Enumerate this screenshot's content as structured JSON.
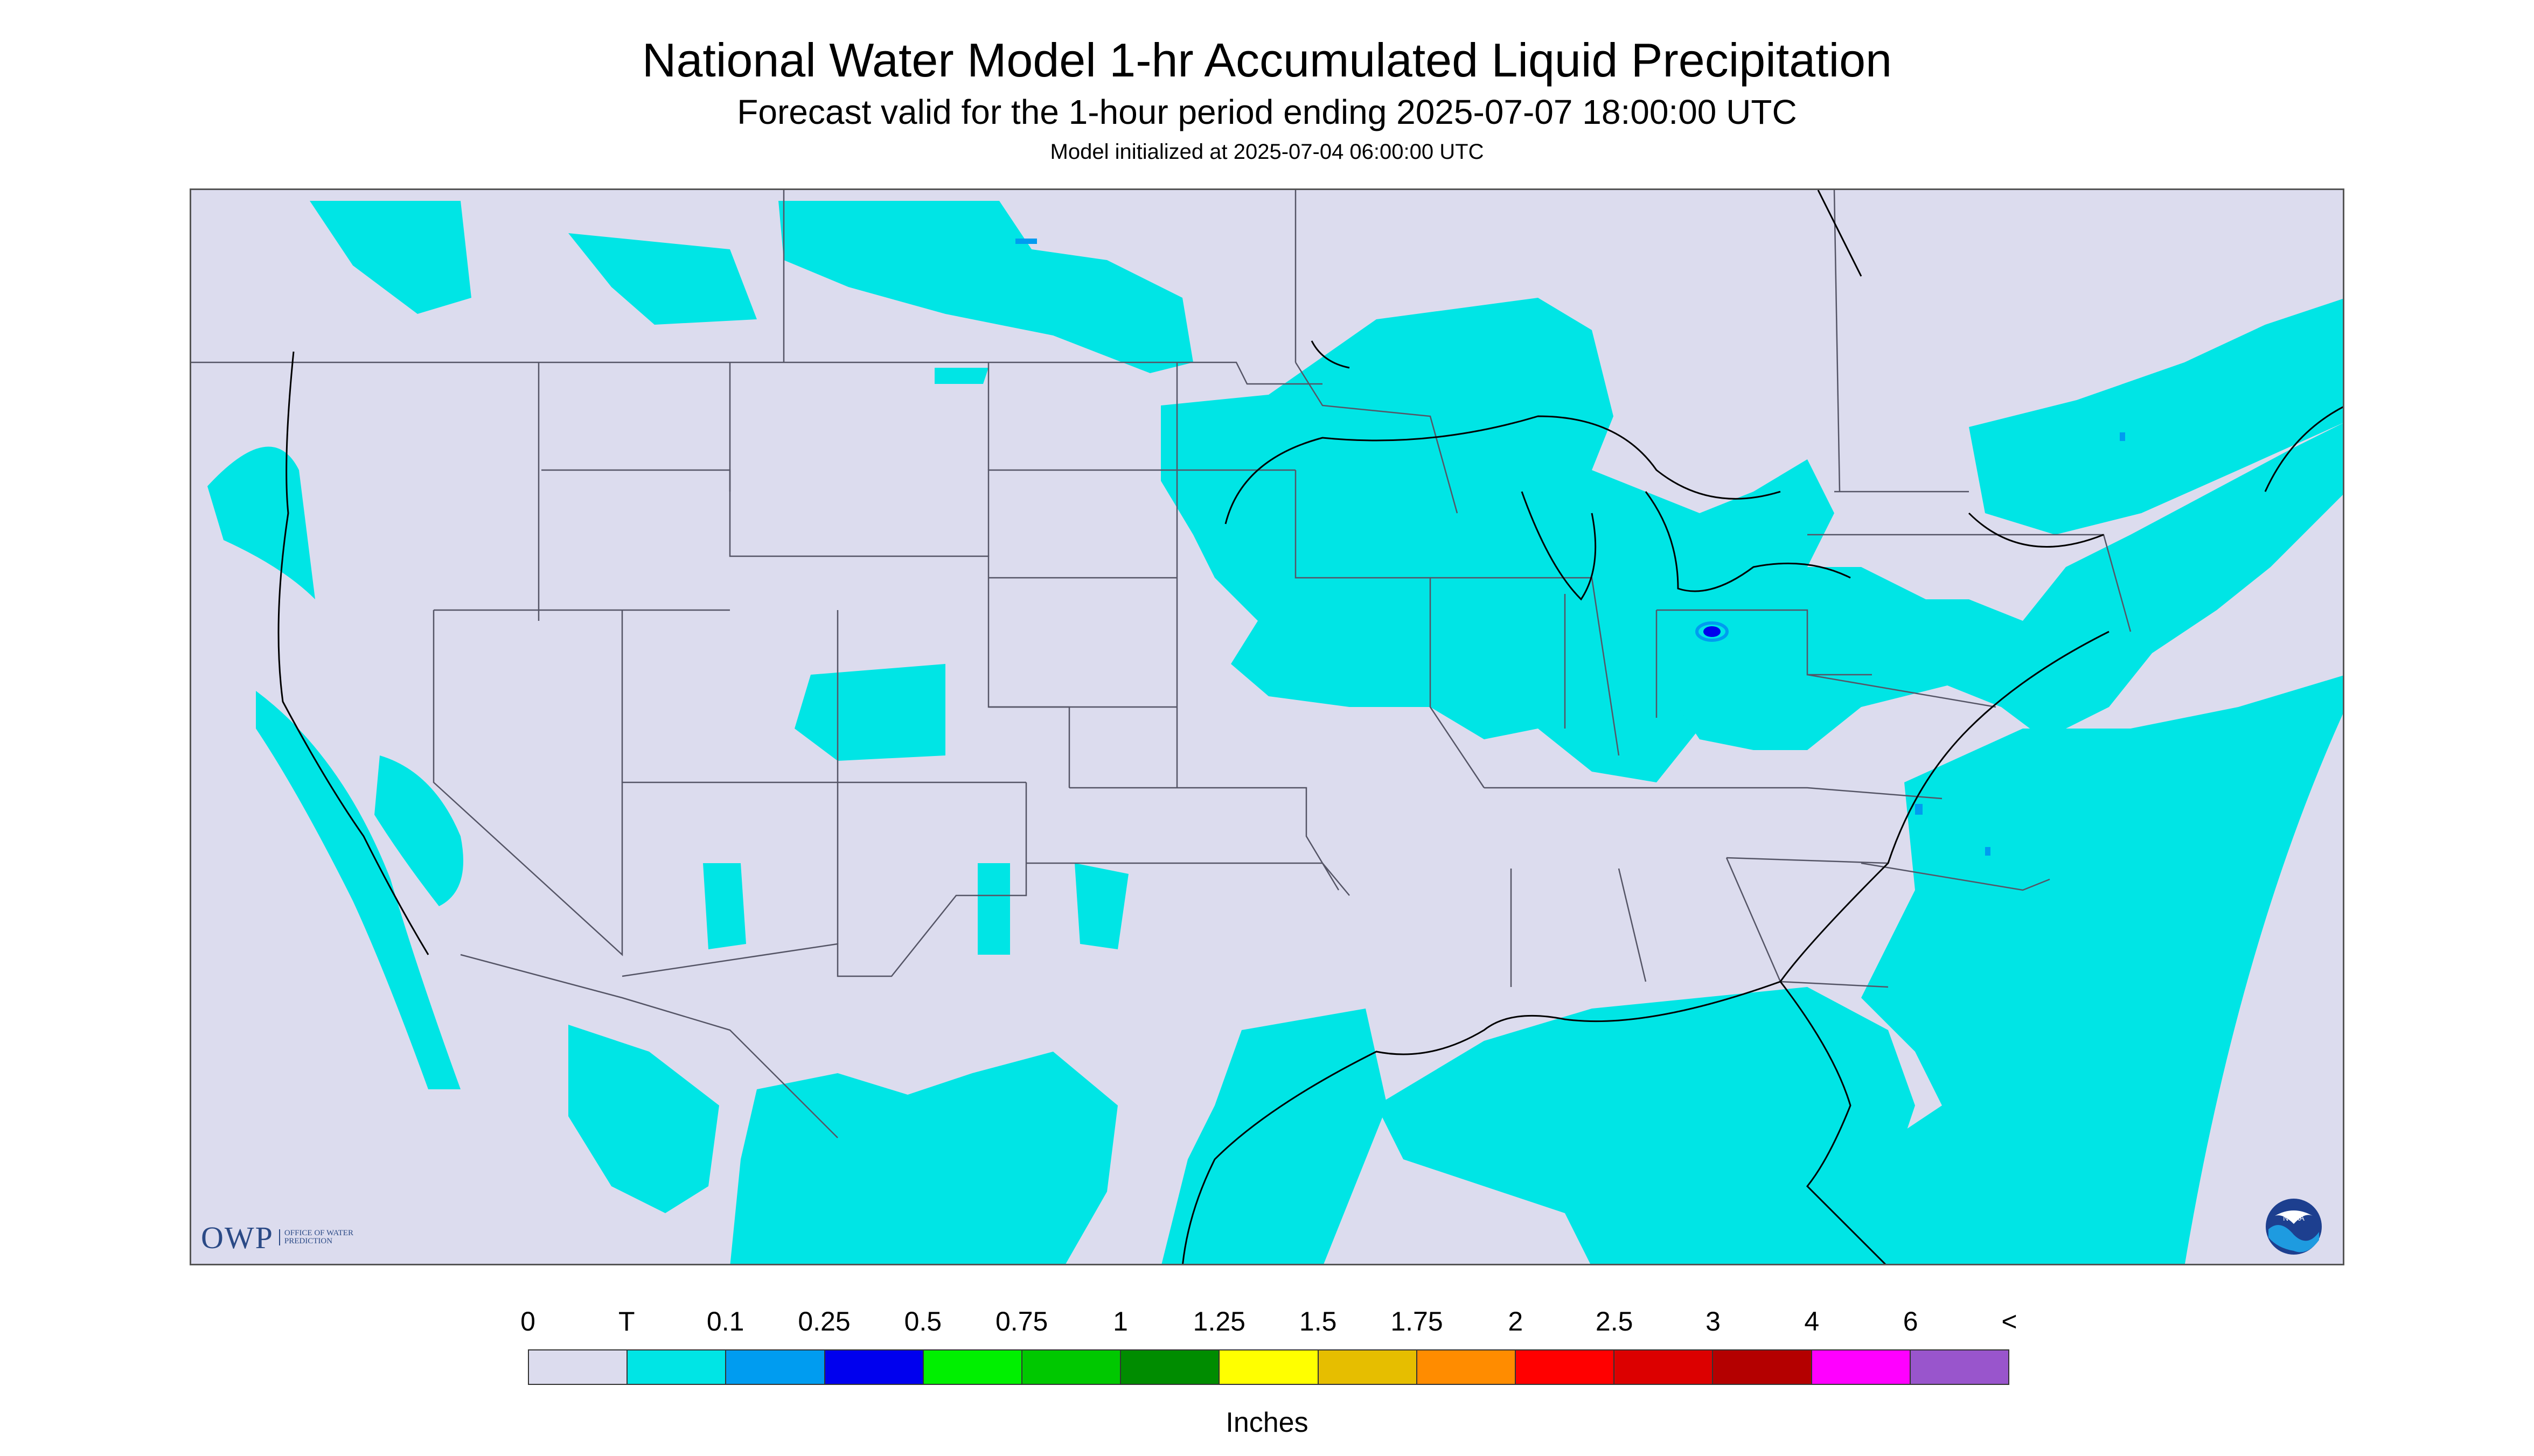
{
  "title": "National Water Model 1-hr Accumulated Liquid Precipitation",
  "subtitle": "Forecast valid for the 1-hour period ending 2025-07-07 18:00:00 UTC",
  "init_line": "Model initialized at 2025-07-04 06:00:00 UTC",
  "map": {
    "projection": "Lambert conformal (CONUS)",
    "no_data_color": "#dcdcee",
    "precip_color": "#00e5e5",
    "border_color": "#555566"
  },
  "logos": {
    "owp_text": "OWP",
    "owp_subtext": "OFFICE OF WATER PREDICTION",
    "noaa_text": "NOAA"
  },
  "legend": {
    "labels": [
      "0",
      "T",
      "0.1",
      "0.25",
      "0.5",
      "0.75",
      "1",
      "1.25",
      "1.5",
      "1.75",
      "2",
      "2.5",
      "3",
      "4",
      "6",
      "<"
    ],
    "colors": [
      "#dcdcee",
      "#00e5e5",
      "#009cf0",
      "#0000ee",
      "#00f000",
      "#00c800",
      "#008c00",
      "#ffff00",
      "#e6be00",
      "#ff8c00",
      "#ff0000",
      "#dc0000",
      "#b40000",
      "#ff00ff",
      "#9955cc"
    ],
    "units": "Inches"
  }
}
